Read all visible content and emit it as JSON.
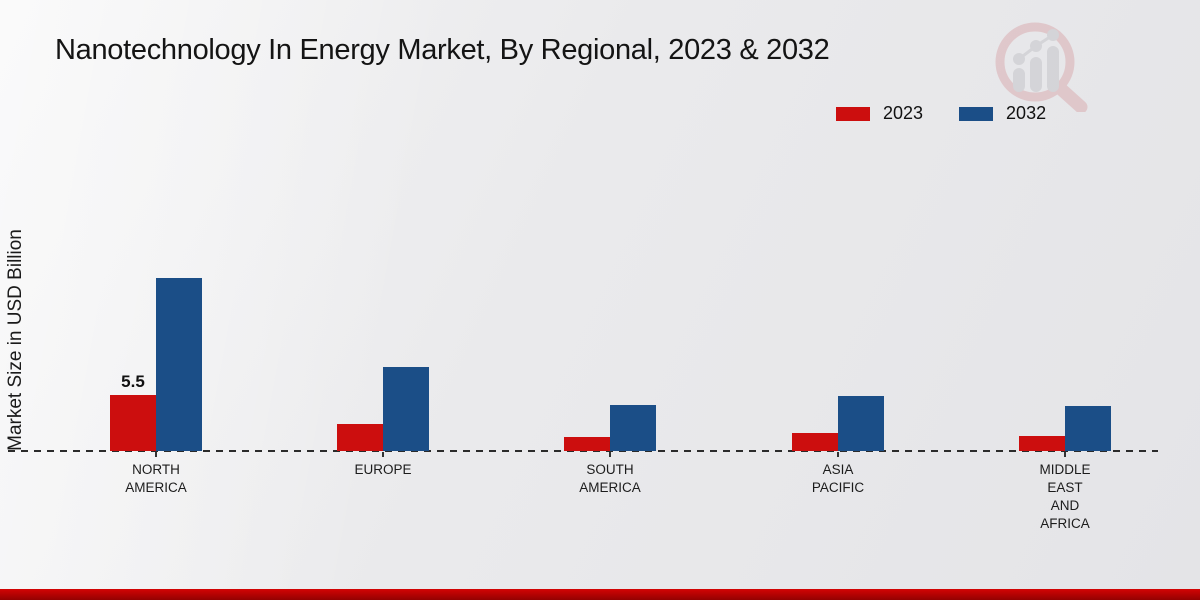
{
  "title": "Nanotechnology In Energy Market, By Regional, 2023 & 2032",
  "y_axis_label": "Market Size in USD Billion",
  "legend": [
    {
      "label": "2023",
      "color": "#cc0e0e"
    },
    {
      "label": "2032",
      "color": "#1b4e87"
    }
  ],
  "watermark_icon": "magnifier-bar-chart-logo",
  "footer": {
    "color_top": "#d40404",
    "color_bottom": "#930101"
  },
  "chart_data": {
    "type": "bar",
    "title": "Nanotechnology In Energy Market, By Regional, 2023 & 2032",
    "xlabel": "",
    "ylabel": "Market Size in USD Billion",
    "categories": [
      "NORTH AMERICA",
      "EUROPE",
      "SOUTH AMERICA",
      "ASIA PACIFIC",
      "MIDDLE EAST AND AFRICA"
    ],
    "category_label_lines": [
      [
        "NORTH",
        "AMERICA"
      ],
      [
        "EUROPE"
      ],
      [
        "SOUTH",
        "AMERICA"
      ],
      [
        "ASIA",
        "PACIFIC"
      ],
      [
        "MIDDLE",
        "EAST",
        "AND",
        "AFRICA"
      ]
    ],
    "series": [
      {
        "name": "2023",
        "color": "#cc0e0e",
        "values": [
          5.5,
          2.6,
          1.4,
          1.8,
          1.5
        ],
        "value_labels": [
          "5.5",
          "",
          "",
          "",
          ""
        ]
      },
      {
        "name": "2032",
        "color": "#1b4e87",
        "values": [
          17.0,
          8.2,
          4.5,
          5.4,
          4.4
        ],
        "value_labels": [
          "",
          "",
          "",
          "",
          ""
        ]
      }
    ],
    "ylim": [
      0,
      18
    ],
    "grid": false,
    "legend_position": "top-right",
    "baseline_style": "black-dashed",
    "annotations": [
      "5.5 labeled above North America 2023 bar"
    ]
  }
}
